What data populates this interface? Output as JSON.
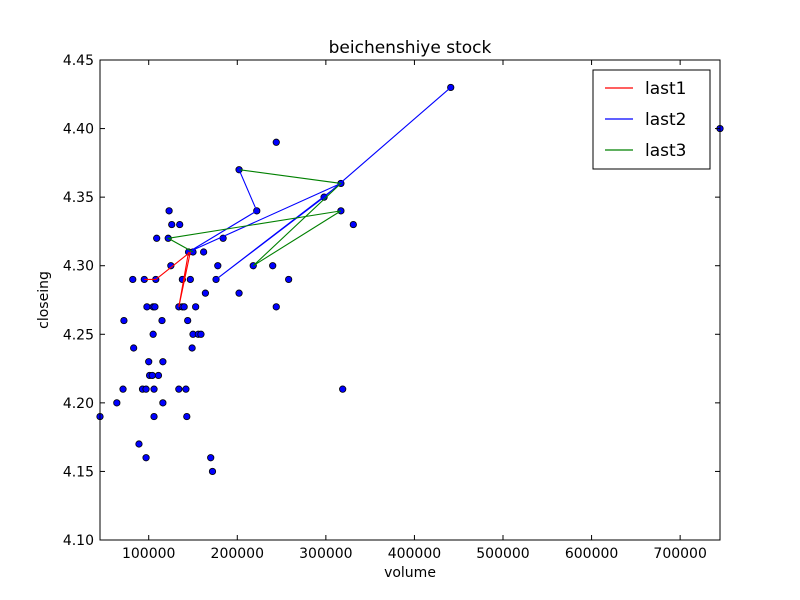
{
  "chart_data": {
    "type": "scatter",
    "title": "beichenshiye stock",
    "xlabel": "volume",
    "ylabel": "closeing",
    "xlim": [
      45000,
      745000
    ],
    "ylim": [
      4.1,
      4.45
    ],
    "x_ticks": [
      100000,
      200000,
      300000,
      400000,
      500000,
      600000,
      700000
    ],
    "x_tick_labels": [
      "100000",
      "200000",
      "300000",
      "400000",
      "500000",
      "600000",
      "700000"
    ],
    "y_ticks": [
      4.1,
      4.15,
      4.2,
      4.25,
      4.3,
      4.35,
      4.4,
      4.45
    ],
    "y_tick_labels": [
      "4.10",
      "4.15",
      "4.20",
      "4.25",
      "4.30",
      "4.35",
      "4.40",
      "4.45"
    ],
    "grid": false,
    "legend_position": "top-right",
    "points": [
      {
        "x": 745000,
        "y": 4.4
      },
      {
        "x": 441000,
        "y": 4.43
      },
      {
        "x": 244000,
        "y": 4.39
      },
      {
        "x": 317000,
        "y": 4.36
      },
      {
        "x": 202000,
        "y": 4.37
      },
      {
        "x": 298000,
        "y": 4.35
      },
      {
        "x": 222000,
        "y": 4.34
      },
      {
        "x": 317000,
        "y": 4.34
      },
      {
        "x": 123000,
        "y": 4.34
      },
      {
        "x": 331000,
        "y": 4.33
      },
      {
        "x": 126000,
        "y": 4.33
      },
      {
        "x": 135000,
        "y": 4.33
      },
      {
        "x": 109000,
        "y": 4.32
      },
      {
        "x": 122000,
        "y": 4.32
      },
      {
        "x": 184000,
        "y": 4.32
      },
      {
        "x": 145000,
        "y": 4.31
      },
      {
        "x": 150000,
        "y": 4.31
      },
      {
        "x": 162000,
        "y": 4.31
      },
      {
        "x": 125000,
        "y": 4.3
      },
      {
        "x": 178000,
        "y": 4.3
      },
      {
        "x": 218000,
        "y": 4.3
      },
      {
        "x": 240000,
        "y": 4.3
      },
      {
        "x": 82000,
        "y": 4.29
      },
      {
        "x": 95000,
        "y": 4.29
      },
      {
        "x": 108000,
        "y": 4.29
      },
      {
        "x": 138000,
        "y": 4.29
      },
      {
        "x": 147000,
        "y": 4.29
      },
      {
        "x": 176000,
        "y": 4.29
      },
      {
        "x": 258000,
        "y": 4.29
      },
      {
        "x": 164000,
        "y": 4.28
      },
      {
        "x": 202000,
        "y": 4.28
      },
      {
        "x": 98000,
        "y": 4.27
      },
      {
        "x": 105000,
        "y": 4.27
      },
      {
        "x": 107000,
        "y": 4.27
      },
      {
        "x": 134000,
        "y": 4.27
      },
      {
        "x": 138000,
        "y": 4.27
      },
      {
        "x": 140000,
        "y": 4.27
      },
      {
        "x": 153000,
        "y": 4.27
      },
      {
        "x": 244000,
        "y": 4.27
      },
      {
        "x": 72000,
        "y": 4.26
      },
      {
        "x": 115000,
        "y": 4.26
      },
      {
        "x": 144000,
        "y": 4.26
      },
      {
        "x": 105000,
        "y": 4.25
      },
      {
        "x": 150000,
        "y": 4.25
      },
      {
        "x": 156000,
        "y": 4.25
      },
      {
        "x": 159000,
        "y": 4.25
      },
      {
        "x": 83000,
        "y": 4.24
      },
      {
        "x": 149000,
        "y": 4.24
      },
      {
        "x": 100000,
        "y": 4.23
      },
      {
        "x": 116000,
        "y": 4.23
      },
      {
        "x": 101000,
        "y": 4.22
      },
      {
        "x": 104000,
        "y": 4.22
      },
      {
        "x": 111000,
        "y": 4.22
      },
      {
        "x": 71000,
        "y": 4.21
      },
      {
        "x": 93000,
        "y": 4.21
      },
      {
        "x": 97000,
        "y": 4.21
      },
      {
        "x": 106000,
        "y": 4.21
      },
      {
        "x": 134000,
        "y": 4.21
      },
      {
        "x": 142000,
        "y": 4.21
      },
      {
        "x": 319000,
        "y": 4.21
      },
      {
        "x": 64000,
        "y": 4.2
      },
      {
        "x": 116000,
        "y": 4.2
      },
      {
        "x": 45000,
        "y": 4.19
      },
      {
        "x": 106000,
        "y": 4.19
      },
      {
        "x": 143000,
        "y": 4.19
      },
      {
        "x": 89000,
        "y": 4.17
      },
      {
        "x": 97000,
        "y": 4.16
      },
      {
        "x": 170000,
        "y": 4.16
      },
      {
        "x": 172000,
        "y": 4.15
      }
    ],
    "series": [
      {
        "name": "last1",
        "color": "#ff0000",
        "x": [
          95000,
          108000,
          147000,
          134000,
          145000,
          134000
        ],
        "y": [
          4.29,
          4.29,
          4.31,
          4.27,
          4.31,
          4.27
        ]
      },
      {
        "name": "last2",
        "color": "#0000ff",
        "x": [
          441000,
          298000,
          176000,
          317000,
          145000,
          222000,
          202000
        ],
        "y": [
          4.43,
          4.35,
          4.29,
          4.36,
          4.31,
          4.34,
          4.37
        ]
      },
      {
        "name": "last3",
        "color": "#008000",
        "x": [
          202000,
          317000,
          218000,
          317000,
          122000,
          150000
        ],
        "y": [
          4.37,
          4.36,
          4.3,
          4.34,
          4.32,
          4.31
        ]
      }
    ],
    "marker_color": "#0000ff"
  }
}
